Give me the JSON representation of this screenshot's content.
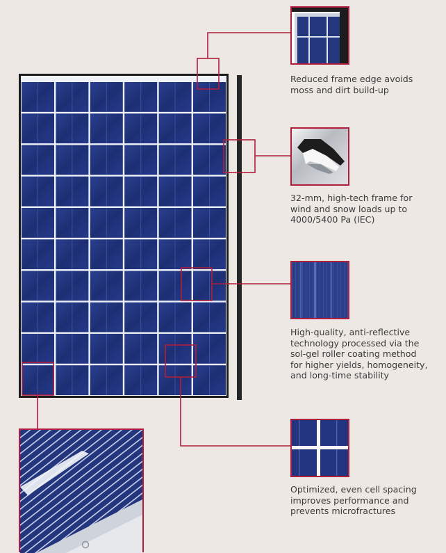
{
  "colors": {
    "background": "#ede8e3",
    "accent_line": "#b01e3c",
    "panel_frame": "#1c1c1c",
    "cell_blue": "#1e3279",
    "grid_white": "#dde6f2",
    "text": "#3a3a3a"
  },
  "panel": {
    "columns": 6,
    "rows": 10
  },
  "callouts": [
    {
      "id": "frame-edge",
      "lines": [
        "Reduced frame edge avoids",
        "moss and dirt build-up"
      ]
    },
    {
      "id": "frame-profile",
      "lines": [
        "32-mm, high-tech frame for",
        "wind and snow loads up to",
        "4000/5400 Pa (IEC)"
      ]
    },
    {
      "id": "anti-reflective",
      "lines": [
        "High-quality, anti-reflective",
        "technology processed via the",
        "sol-gel roller coating method",
        "for higher yields, homogeneity,",
        "and long-time stability"
      ]
    },
    {
      "id": "cell-spacing",
      "lines": [
        "Optimized, even cell spacing",
        "improves performance and",
        "prevents microfractures"
      ]
    }
  ]
}
